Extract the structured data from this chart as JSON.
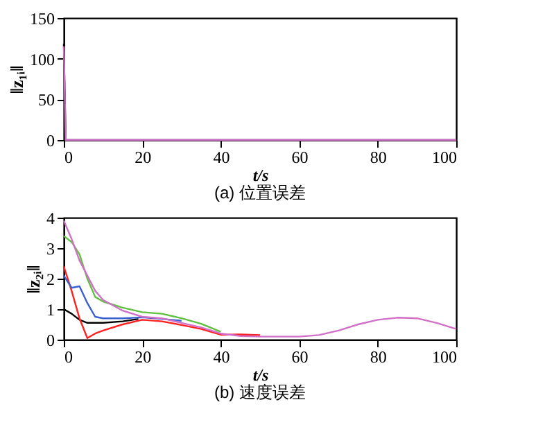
{
  "chart_data": [
    {
      "type": "line",
      "title": "(a) 位置误差",
      "xlabel": "t/s",
      "ylabel": "‖z₁ᵢ‖",
      "xlim": [
        0,
        100
      ],
      "ylim": [
        0,
        150
      ],
      "xticks": [
        0,
        20,
        40,
        60,
        80,
        100
      ],
      "yticks": [
        0,
        50,
        100,
        150
      ],
      "grid": false,
      "legend": false,
      "x": [
        0,
        0.5,
        100
      ],
      "series": [
        {
          "color": "#000000",
          "values": [
            118,
            0,
            0
          ]
        },
        {
          "color": "#d070c8",
          "values": [
            115,
            0,
            0
          ]
        }
      ]
    },
    {
      "type": "line",
      "title": "(b) 速度误差",
      "xlabel": "t/s",
      "ylabel": "‖z₂ᵢ‖",
      "xlim": [
        0,
        100
      ],
      "ylim": [
        0,
        4
      ],
      "xticks": [
        0,
        20,
        40,
        60,
        80,
        100
      ],
      "yticks": [
        0,
        1,
        2,
        3,
        4
      ],
      "grid": false,
      "legend": false,
      "x": [
        0,
        2,
        4,
        6,
        8,
        10,
        15,
        20,
        25,
        30,
        35,
        40,
        45,
        50,
        55,
        60,
        65,
        70,
        75,
        80,
        85,
        90,
        95,
        100
      ],
      "series": [
        {
          "color": "#000000",
          "x": [
            0,
            2,
            4,
            6,
            8,
            10,
            15,
            19
          ],
          "values": [
            1.0,
            0.85,
            0.65,
            0.55,
            0.55,
            0.55,
            0.6,
            0.68
          ]
        },
        {
          "color": "#ff2020",
          "x": [
            0,
            2,
            4,
            6,
            8,
            10,
            15,
            20,
            25,
            30,
            35,
            40,
            45,
            50
          ],
          "values": [
            2.4,
            1.6,
            0.7,
            0.05,
            0.2,
            0.3,
            0.5,
            0.65,
            0.6,
            0.48,
            0.35,
            0.16,
            0.17,
            0.15
          ]
        },
        {
          "color": "#3a5fd0",
          "x": [
            0,
            2,
            4,
            6,
            8,
            10,
            15,
            20,
            25,
            30
          ],
          "values": [
            2.1,
            1.7,
            1.75,
            1.2,
            0.75,
            0.7,
            0.7,
            0.73,
            0.68,
            0.62
          ]
        },
        {
          "color": "#60c040",
          "x": [
            0,
            2,
            4,
            6,
            8,
            10,
            15,
            20,
            25,
            30,
            35,
            40
          ],
          "values": [
            3.4,
            3.2,
            2.8,
            2.0,
            1.4,
            1.25,
            1.05,
            0.9,
            0.85,
            0.7,
            0.52,
            0.26
          ]
        },
        {
          "color": "#d070c8",
          "values": [
            3.9,
            3.3,
            2.6,
            2.1,
            1.6,
            1.3,
            0.95,
            0.75,
            0.7,
            0.55,
            0.4,
            0.2,
            0.12,
            0.1,
            0.1,
            0.1,
            0.15,
            0.3,
            0.5,
            0.65,
            0.72,
            0.7,
            0.55,
            0.35
          ]
        }
      ]
    }
  ]
}
